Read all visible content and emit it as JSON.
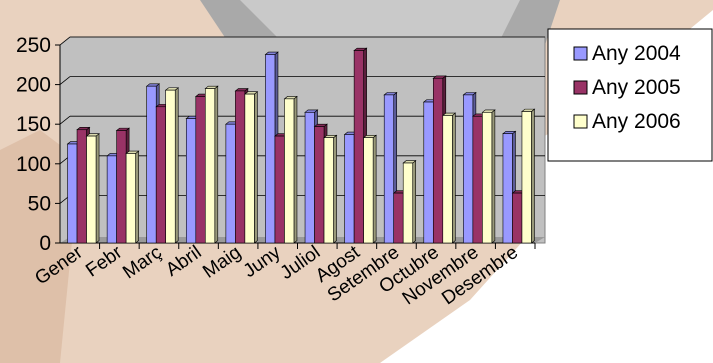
{
  "chart_data": {
    "type": "bar",
    "title": "",
    "xlabel": "",
    "ylabel": "",
    "ylim": [
      0,
      250
    ],
    "yticks": [
      0,
      50,
      100,
      150,
      200,
      250
    ],
    "grid": true,
    "legend_position": "right",
    "categories": [
      "Gener",
      "Febr",
      "Març",
      "Abril",
      "Maig",
      "Juny",
      "Juliol",
      "Agost",
      "Setembre",
      "Octubre",
      "Novembre",
      "Desembre"
    ],
    "series": [
      {
        "name": "Any 2004",
        "color": "#9999FF",
        "values": [
          125,
          110,
          198,
          157,
          150,
          238,
          165,
          137,
          187,
          178,
          187,
          138
        ]
      },
      {
        "name": "Any 2005",
        "color": "#993366",
        "values": [
          143,
          142,
          172,
          185,
          192,
          135,
          147,
          243,
          63,
          208,
          160,
          63
        ]
      },
      {
        "name": "Any 2006",
        "color": "#FFFFCC",
        "values": [
          135,
          113,
          193,
          195,
          188,
          182,
          133,
          133,
          101,
          161,
          165,
          166
        ]
      }
    ]
  }
}
